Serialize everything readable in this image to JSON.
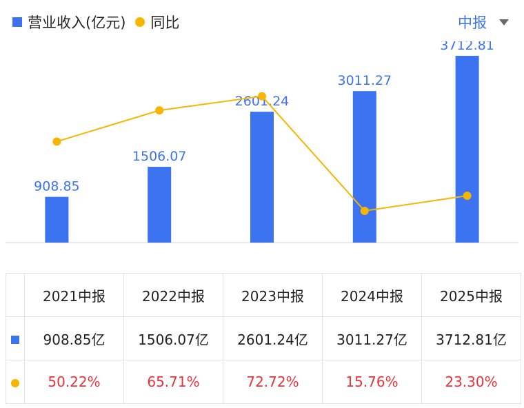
{
  "legend": {
    "revenue_label": "营业收入(亿元)",
    "yoy_label": "同比"
  },
  "period_selector": {
    "value": "中报"
  },
  "colors": {
    "bar": "#3B73F0",
    "line": "#F7B500",
    "negative_growth_text": "#E8333A"
  },
  "chart_data": {
    "type": "bar",
    "categories": [
      "2021中报",
      "2022中报",
      "2023中报",
      "2024中报",
      "2025中报"
    ],
    "series": [
      {
        "name": "营业收入(亿元)",
        "type": "bar",
        "values": [
          908.85,
          1506.07,
          2601.24,
          3011.27,
          3712.81
        ],
        "labels": [
          "908.85",
          "1506.07",
          "2601.24",
          "3011.27",
          "3712.81"
        ]
      },
      {
        "name": "同比",
        "type": "line",
        "values": [
          50.22,
          65.71,
          72.72,
          15.76,
          23.3
        ]
      }
    ],
    "bar_ylim": [
      0,
      4000
    ],
    "line_ylim": [
      0,
      100
    ]
  },
  "table": {
    "headers": [
      "2021中报",
      "2022中报",
      "2023中报",
      "2024中报",
      "2025中报"
    ],
    "revenue_row": [
      "908.85亿",
      "1506.07亿",
      "2601.24亿",
      "3011.27亿",
      "3712.81亿"
    ],
    "yoy_row": [
      "50.22%",
      "65.71%",
      "72.72%",
      "15.76%",
      "23.30%"
    ]
  }
}
